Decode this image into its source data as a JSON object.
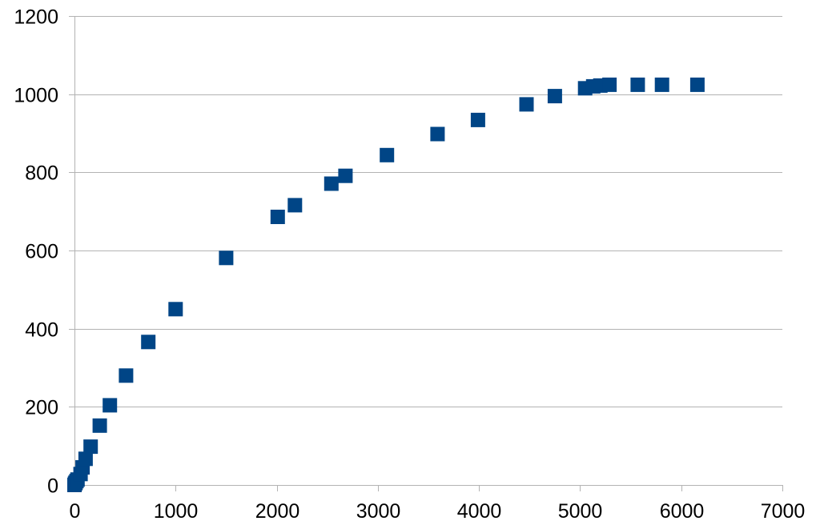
{
  "chart_data": {
    "type": "scatter",
    "title": "",
    "xlabel": "",
    "ylabel": "",
    "xlim": [
      0,
      7000
    ],
    "ylim": [
      0,
      1200
    ],
    "x_ticks": [
      0,
      1000,
      2000,
      3000,
      4000,
      5000,
      6000,
      7000
    ],
    "y_ticks": [
      0,
      200,
      400,
      600,
      800,
      1000,
      1200
    ],
    "x_tick_labels": [
      "0",
      "1000",
      "2000",
      "3000",
      "4000",
      "5000",
      "6000",
      "7000"
    ],
    "y_tick_labels": [
      "0",
      "200",
      "400",
      "600",
      "800",
      "1000",
      "1200"
    ],
    "grid": "horizontal",
    "marker": "square",
    "marker_color": "#004586",
    "grid_color": "#b3b3b3",
    "series": [
      {
        "points": [
          [
            0,
            0
          ],
          [
            5,
            3
          ],
          [
            10,
            6
          ],
          [
            20,
            10
          ],
          [
            30,
            14
          ],
          [
            60,
            28
          ],
          [
            80,
            45
          ],
          [
            110,
            67
          ],
          [
            160,
            98
          ],
          [
            250,
            152
          ],
          [
            350,
            204
          ],
          [
            510,
            280
          ],
          [
            730,
            366
          ],
          [
            1000,
            450
          ],
          [
            1500,
            581
          ],
          [
            2010,
            686
          ],
          [
            2180,
            716
          ],
          [
            2540,
            771
          ],
          [
            2680,
            791
          ],
          [
            3090,
            844
          ],
          [
            3590,
            898
          ],
          [
            3990,
            934
          ],
          [
            4470,
            974
          ],
          [
            4750,
            995
          ],
          [
            5050,
            1015
          ],
          [
            5130,
            1020
          ],
          [
            5200,
            1022
          ],
          [
            5290,
            1024
          ],
          [
            5570,
            1024
          ],
          [
            5810,
            1024
          ],
          [
            6160,
            1024
          ]
        ]
      }
    ]
  }
}
